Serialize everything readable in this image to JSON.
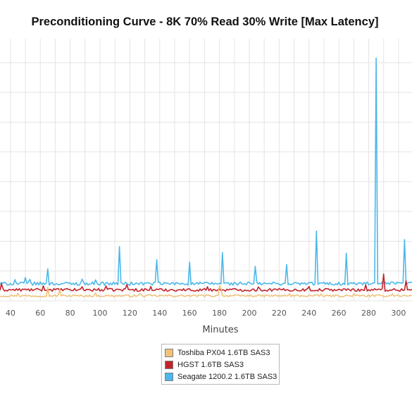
{
  "chart_data": {
    "type": "line",
    "title": "Preconditioning Curve - 8K 70% Read 30% Write [Max Latency]",
    "xlabel": "Minutes",
    "ylabel": "",
    "xlim": [
      33,
      309
    ],
    "ylim": [
      0,
      110
    ],
    "x_ticks": [
      40,
      60,
      80,
      100,
      120,
      140,
      160,
      180,
      200,
      220,
      240,
      260,
      280,
      300
    ],
    "grid": true,
    "legend_position": "bottom-center",
    "series": [
      {
        "name": "Toshiba PX04 1.6TB SAS3",
        "color": "#f0c27c",
        "base": 2.1,
        "noise": 0.4,
        "spikes": [
          [
            45,
            1.1
          ],
          [
            65,
            3.6
          ],
          [
            73,
            2.6
          ],
          [
            97,
            1.2
          ],
          [
            127,
            0.9
          ],
          [
            180,
            4.3
          ],
          [
            181,
            3.2
          ],
          [
            227,
            0.9
          ],
          [
            248,
            0.8
          ],
          [
            270,
            0.9
          ],
          [
            296,
            0.8
          ]
        ]
      },
      {
        "name": "HGST 1.6TB SAS3",
        "color": "#c0242a",
        "base": 4.6,
        "noise": 0.6,
        "spikes": [
          [
            34,
            2.6
          ],
          [
            62,
            1.7
          ],
          [
            88,
            1.3
          ],
          [
            104,
            1.6
          ],
          [
            118,
            2.2
          ],
          [
            134,
            1.4
          ],
          [
            172,
            1.3
          ],
          [
            206,
            1.2
          ],
          [
            240,
            1.4
          ],
          [
            278,
            2.1
          ],
          [
            290,
            6.6
          ],
          [
            305,
            3.8
          ]
        ]
      },
      {
        "name": "Seagate 1200.2 1.6TB SAS3",
        "color": "#4cb8ea",
        "base": 7.2,
        "noise": 0.7,
        "spikes": [
          [
            43,
            1.7
          ],
          [
            50,
            2.6
          ],
          [
            53,
            1.8
          ],
          [
            65,
            6.2
          ],
          [
            88,
            1.9
          ],
          [
            97,
            1.6
          ],
          [
            113,
            15.6
          ],
          [
            138,
            10.0
          ],
          [
            160,
            9.1
          ],
          [
            182,
            13.0
          ],
          [
            204,
            7.3
          ],
          [
            225,
            8.0
          ],
          [
            245,
            22.1
          ],
          [
            265,
            12.8
          ],
          [
            285,
            94.7
          ],
          [
            304,
            18.5
          ]
        ]
      }
    ]
  },
  "legend": {
    "items": [
      {
        "label": "Toshiba PX04 1.6TB SAS3",
        "color": "#f0c27c"
      },
      {
        "label": "HGST 1.6TB SAS3",
        "color": "#c0242a"
      },
      {
        "label": "Seagate 1200.2 1.6TB SAS3",
        "color": "#4cb8ea"
      }
    ]
  }
}
